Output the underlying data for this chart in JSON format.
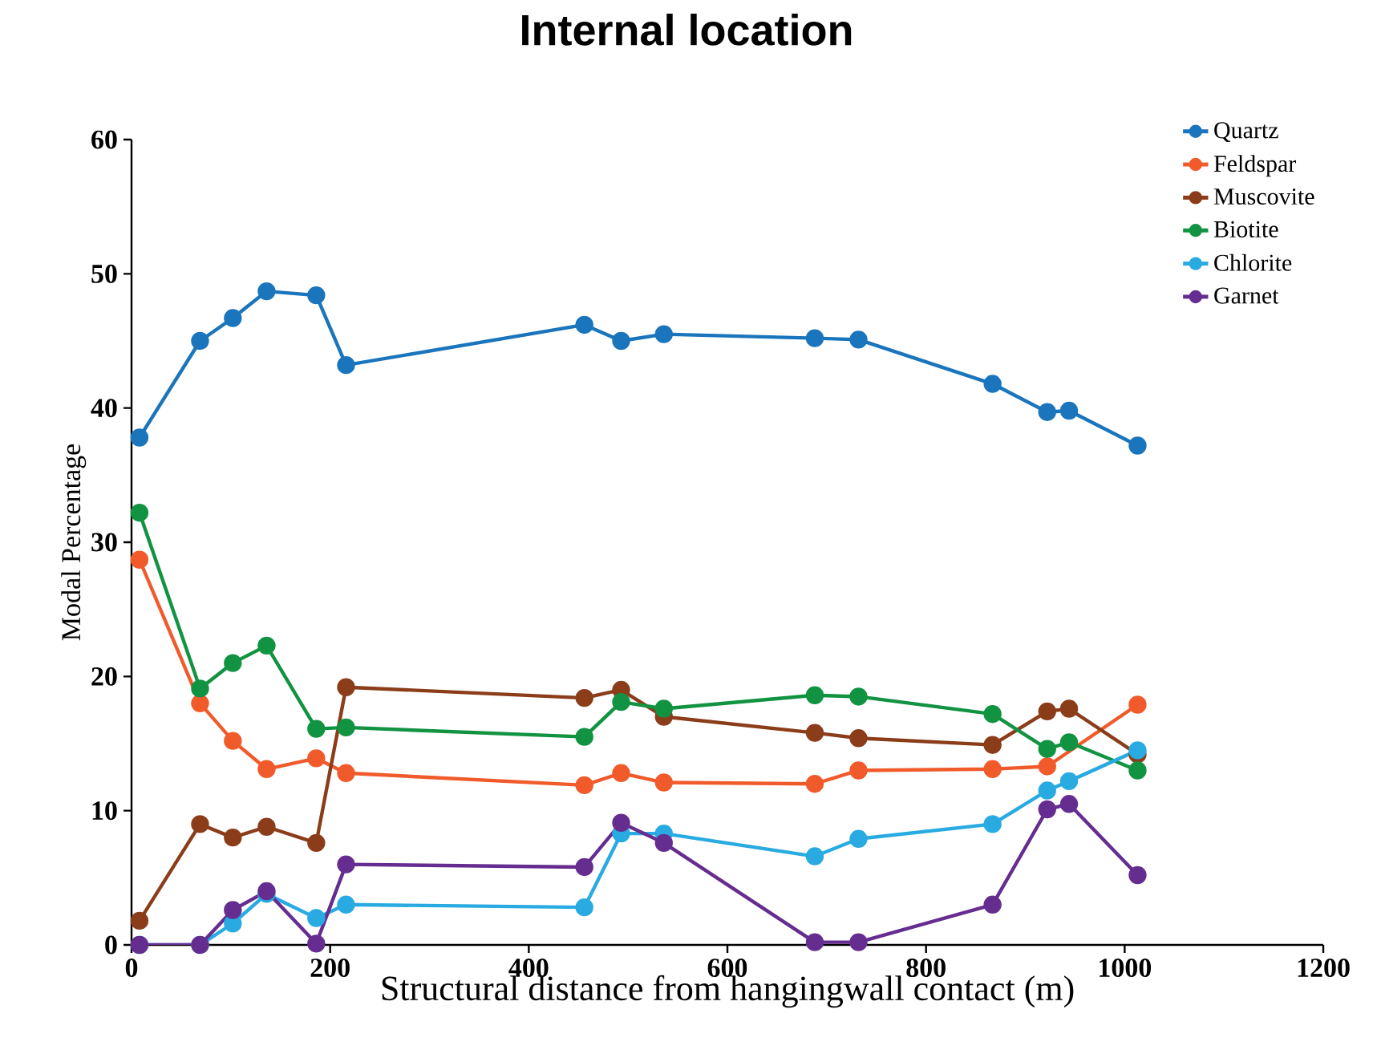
{
  "chart_data": {
    "type": "line",
    "title": "Internal location",
    "xlabel": "Structural distance from hangingwall contact (m)",
    "ylabel": "Modal Percentage",
    "x": [
      8,
      69,
      102,
      136,
      186,
      216,
      456,
      493,
      536,
      688,
      732,
      867,
      922,
      944,
      1013
    ],
    "xlim": [
      0,
      1200
    ],
    "xticks": [
      0,
      200,
      400,
      600,
      800,
      1000,
      1200
    ],
    "ylim": [
      0,
      60
    ],
    "yticks": [
      0,
      10,
      20,
      30,
      40,
      50,
      60
    ],
    "grid": false,
    "legend": "top right",
    "marker": "circle",
    "line_style": "solid",
    "series": [
      {
        "name": "Quartz",
        "color": "#1a75bc",
        "values": [
          37.8,
          45,
          46.7,
          48.7,
          48.4,
          43.2,
          46.2,
          45,
          45.5,
          45.2,
          45.1,
          41.8,
          39.7,
          39.8,
          37.2
        ]
      },
      {
        "name": "Feldspar",
        "color": "#f15a2b",
        "values": [
          28.7,
          18,
          15.2,
          13.1,
          13.9,
          12.8,
          11.9,
          12.8,
          12.1,
          12.0,
          13.0,
          13.1,
          13.3,
          null,
          17.9
        ]
      },
      {
        "name": "Muscovite",
        "color": "#8b3d1a",
        "values": [
          1.8,
          9,
          8,
          8.8,
          7.6,
          19.2,
          18.4,
          19,
          17,
          15.8,
          15.4,
          14.9,
          17.4,
          17.6,
          14.2
        ]
      },
      {
        "name": "Biotite",
        "color": "#119342",
        "values": [
          32.2,
          19.1,
          21,
          22.3,
          16.1,
          16.2,
          15.5,
          18.1,
          17.6,
          18.6,
          18.5,
          17.2,
          14.6,
          15.1,
          13.0
        ]
      },
      {
        "name": "Chlorite",
        "color": "#29abe2",
        "values": [
          0,
          0,
          1.6,
          3.8,
          2.0,
          3.0,
          2.8,
          8.3,
          8.3,
          6.6,
          7.9,
          9.0,
          11.5,
          12.2,
          14.5
        ]
      },
      {
        "name": "Garnet",
        "color": "#662d91",
        "values": [
          0,
          0,
          2.6,
          4.0,
          0.1,
          6.0,
          5.8,
          9.1,
          7.6,
          0.2,
          0.2,
          3.0,
          10.1,
          10.5,
          5.2
        ]
      }
    ]
  }
}
